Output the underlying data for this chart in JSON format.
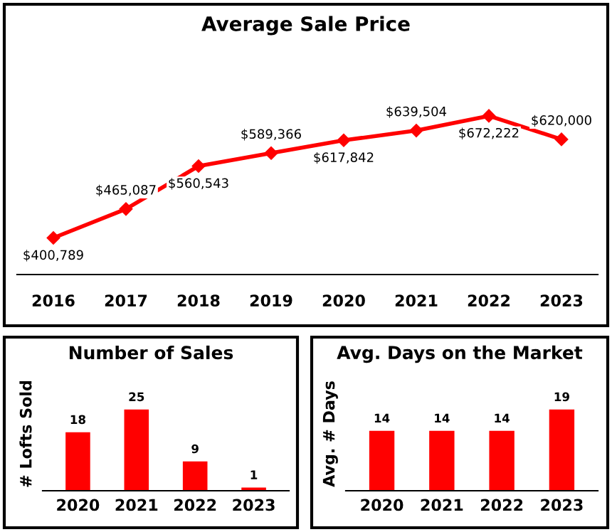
{
  "chart_data": [
    {
      "type": "line",
      "title": "Average Sale Price",
      "categories": [
        "2016",
        "2017",
        "2018",
        "2019",
        "2020",
        "2021",
        "2022",
        "2023"
      ],
      "series": [
        {
          "color": "#ff0000",
          "values": [
            400789,
            465087,
            560543,
            589366,
            617842,
            639504,
            672222,
            620000
          ],
          "value_labels": [
            "$400,789",
            "$465,087",
            "$560,543",
            "$589,366",
            "$617,842",
            "$639,504",
            "$672,222",
            "$620,000"
          ]
        }
      ],
      "marker": "diamond",
      "line_style": "solid",
      "grid": false,
      "legend": false,
      "tick_labels": "x"
    },
    {
      "type": "bar",
      "title": "Number of Sales",
      "ylabel": "# Lofts Sold",
      "categories": [
        "2020",
        "2021",
        "2022",
        "2023"
      ],
      "series": [
        {
          "color": "#ff0000",
          "values": [
            18,
            25,
            9,
            1
          ]
        }
      ],
      "data_labels": true,
      "grid": false,
      "legend": false,
      "tick_labels": "x"
    },
    {
      "type": "bar",
      "title": "Avg. Days on the Market",
      "ylabel": "Avg. # Days",
      "categories": [
        "2020",
        "2021",
        "2022",
        "2023"
      ],
      "series": [
        {
          "color": "#ff0000",
          "values": [
            14,
            14,
            14,
            19
          ]
        }
      ],
      "data_labels": true,
      "grid": false,
      "legend": false,
      "tick_labels": "x"
    }
  ]
}
